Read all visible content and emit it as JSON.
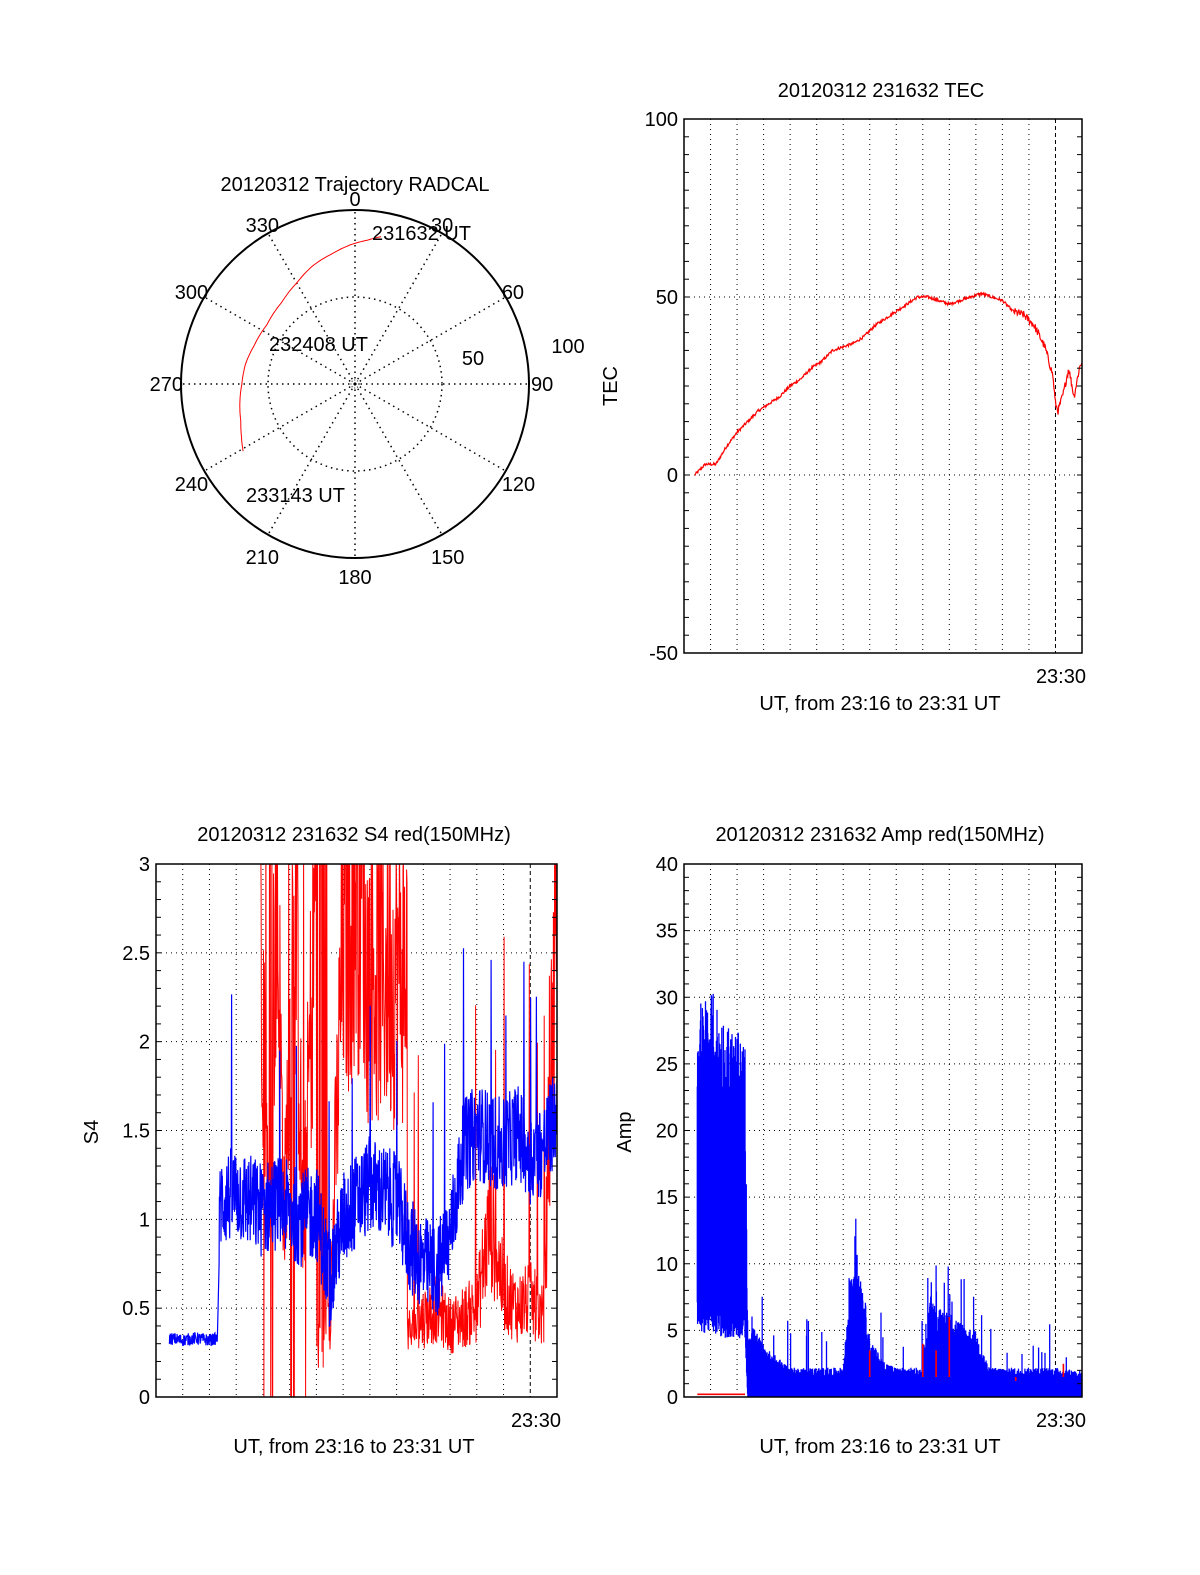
{
  "colors": {
    "red": "#ff0000",
    "blue": "#0000ff",
    "axis": "#000000"
  },
  "chart_data": [
    {
      "type": "polar",
      "title": "20120312 Trajectory RADCAL",
      "angle_labels": [
        "0",
        "30",
        "60",
        "90",
        "120",
        "150",
        "180",
        "210",
        "240",
        "270",
        "300",
        "330"
      ],
      "radial_range": [
        0,
        100
      ],
      "radial_labels": [
        "50",
        "100"
      ],
      "grid": "dotted",
      "series": [
        {
          "name": "trajectory",
          "color": "red",
          "points_az_el": [
            [
              10,
              86
            ],
            [
              5,
              83
            ],
            [
              358,
              80
            ],
            [
              350,
              76
            ],
            [
              340,
              72
            ],
            [
              330,
              67
            ],
            [
              318,
              63
            ],
            [
              304,
              61
            ],
            [
              291,
              62
            ],
            [
              280,
              64
            ],
            [
              270,
              65
            ],
            [
              261,
              67
            ],
            [
              252,
              69
            ],
            [
              245,
              72
            ],
            [
              239,
              75
            ]
          ]
        }
      ],
      "annotations": [
        {
          "text": "231632 UT",
          "az": 10,
          "r": 86
        },
        {
          "text": "232408 UT",
          "az": 304,
          "r": 61
        },
        {
          "text": "233143 UT",
          "az": 239,
          "r": 75
        }
      ]
    },
    {
      "type": "line",
      "title": "20120312 231632 TEC",
      "ylabel": "TEC",
      "xlabel": "UT, from 23:16 to 23:31 UT",
      "xlim_minutes": [
        0,
        15
      ],
      "x_start": "23:16",
      "ylim": [
        -50,
        100
      ],
      "yticks": [
        "-50",
        "0",
        "50",
        "100"
      ],
      "ytick_values": [
        -50,
        0,
        50,
        100
      ],
      "y_minor_step": 5,
      "xtick_labels": [
        {
          "label": "23:30",
          "minute": 14
        }
      ],
      "grid": true,
      "series": [
        {
          "name": "TEC",
          "color": "red",
          "x_minutes": [
            0.4,
            0.8,
            1.2,
            1.6,
            2.0,
            2.4,
            2.8,
            3.2,
            3.6,
            4.0,
            4.4,
            4.8,
            5.2,
            5.6,
            6.0,
            6.4,
            6.8,
            7.2,
            7.6,
            8.0,
            8.4,
            8.8,
            9.2,
            9.6,
            10.0,
            10.4,
            10.8,
            11.2,
            11.6,
            12.0,
            12.4,
            12.8,
            13.2,
            13.6,
            13.9,
            14.0,
            14.1,
            14.3,
            14.5,
            14.7,
            14.9,
            15.0
          ],
          "values": [
            0,
            3,
            3,
            8,
            12,
            15,
            18,
            20,
            22,
            25,
            27,
            30,
            32,
            35,
            36,
            37,
            39,
            42,
            44,
            46,
            48,
            50,
            50,
            49,
            48,
            49,
            50,
            51,
            50,
            49,
            46,
            45,
            42,
            36,
            28,
            20,
            18,
            23,
            30,
            22,
            30,
            32
          ]
        }
      ]
    },
    {
      "type": "line",
      "title": "20120312 231632 S4 red(150MHz)",
      "ylabel": "S4",
      "xlabel": "UT, from 23:16 to 23:31 UT",
      "xlim_minutes": [
        0,
        15
      ],
      "x_start": "23:16",
      "ylim": [
        0,
        3
      ],
      "yticks": [
        "0",
        "0.5",
        "1",
        "1.5",
        "2",
        "2.5",
        "3"
      ],
      "ytick_values": [
        0,
        0.5,
        1,
        1.5,
        2,
        2.5,
        3
      ],
      "y_minor_step": 0.1,
      "xtick_labels": [
        {
          "label": "23:30",
          "minute": 14
        }
      ],
      "grid": true,
      "series": [
        {
          "name": "S4 red (150MHz)",
          "color": "red",
          "x_minutes": [
            3.9,
            4.2,
            4.5,
            4.8,
            5.2,
            5.5,
            6.0,
            6.5,
            7.0,
            7.5,
            8.0,
            8.5,
            9.0,
            9.5,
            10.0,
            10.5,
            11.0,
            11.5,
            12.0,
            12.5,
            13.0,
            13.5,
            14.0,
            14.5,
            15.0
          ],
          "values": [
            3.0,
            1.0,
            3.0,
            1.0,
            3.0,
            0.9,
            3.0,
            0.4,
            2.6,
            3.0,
            3.0,
            1.2,
            0.8,
            0.35,
            0.45,
            0.5,
            0.4,
            0.45,
            0.5,
            1.0,
            0.6,
            0.5,
            0.55,
            0.45,
            3.0
          ]
        },
        {
          "name": "S4 blue",
          "color": "blue",
          "x_minutes": [
            0.5,
            1.0,
            1.5,
            2.0,
            2.3,
            2.4,
            3.0,
            3.5,
            4.0,
            4.5,
            5.0,
            5.5,
            6.0,
            6.5,
            7.0,
            7.5,
            8.0,
            8.5,
            9.0,
            9.5,
            10.0,
            10.5,
            11.0,
            11.5,
            12.0,
            12.5,
            13.0,
            13.5,
            14.0,
            14.5,
            15.0
          ],
          "values": [
            0.33,
            0.32,
            0.33,
            0.32,
            0.33,
            1.1,
            1.15,
            1.1,
            1.05,
            1.1,
            1.05,
            1.0,
            1.05,
            0.65,
            1.0,
            1.1,
            1.2,
            1.15,
            1.1,
            0.85,
            0.75,
            0.7,
            0.9,
            1.4,
            1.5,
            1.45,
            1.4,
            1.5,
            1.35,
            1.4,
            1.6
          ]
        }
      ]
    },
    {
      "type": "bar",
      "title": "20120312 231632 Amp red(150MHz)",
      "ylabel": "Amp",
      "xlabel": "UT, from 23:16 to 23:31 UT",
      "xlim_minutes": [
        0,
        15
      ],
      "x_start": "23:16",
      "ylim": [
        0,
        40
      ],
      "yticks": [
        "0",
        "5",
        "10",
        "15",
        "20",
        "25",
        "30",
        "35",
        "40"
      ],
      "ytick_values": [
        0,
        5,
        10,
        15,
        20,
        25,
        30,
        35,
        40
      ],
      "y_minor_step": 1,
      "xtick_labels": [
        {
          "label": "23:30",
          "minute": 14
        }
      ],
      "grid": true,
      "series": [
        {
          "name": "Amp red",
          "color": "red",
          "x_minutes": [
            0.5,
            1.0,
            1.5,
            2.0,
            2.3,
            7.0,
            9.0,
            9.5,
            10.0,
            12.5,
            14.3
          ],
          "values": [
            0.2,
            0.2,
            0.2,
            0.2,
            0.2,
            3.5,
            4.0,
            3.5,
            6.0,
            1.2,
            2.5
          ]
        },
        {
          "name": "Amp blue",
          "color": "blue",
          "x_minutes": [
            0.5,
            1.0,
            1.5,
            2.0,
            2.3,
            2.4,
            2.6,
            3.0,
            4.0,
            5.0,
            6.0,
            6.3,
            6.5,
            6.8,
            7.0,
            7.5,
            8.0,
            8.5,
            9.0,
            9.3,
            9.6,
            10.0,
            10.5,
            11.0,
            11.5,
            12.0,
            13.0,
            14.0,
            15.0
          ],
          "max_values": [
            27,
            28,
            26,
            25,
            24,
            4.5,
            5,
            3.5,
            2,
            2,
            2,
            9,
            10,
            7,
            4,
            2.5,
            2,
            2,
            2,
            7,
            6,
            6,
            5,
            4.5,
            2,
            2,
            2,
            2,
            1.8
          ],
          "min_values": [
            6,
            6,
            5.5,
            5.5,
            5.5,
            0,
            0,
            0,
            0,
            0,
            0,
            0,
            0,
            0,
            0,
            0,
            0,
            0,
            0,
            0,
            0,
            0,
            0,
            0,
            0,
            0,
            0,
            0,
            0
          ]
        }
      ]
    }
  ]
}
